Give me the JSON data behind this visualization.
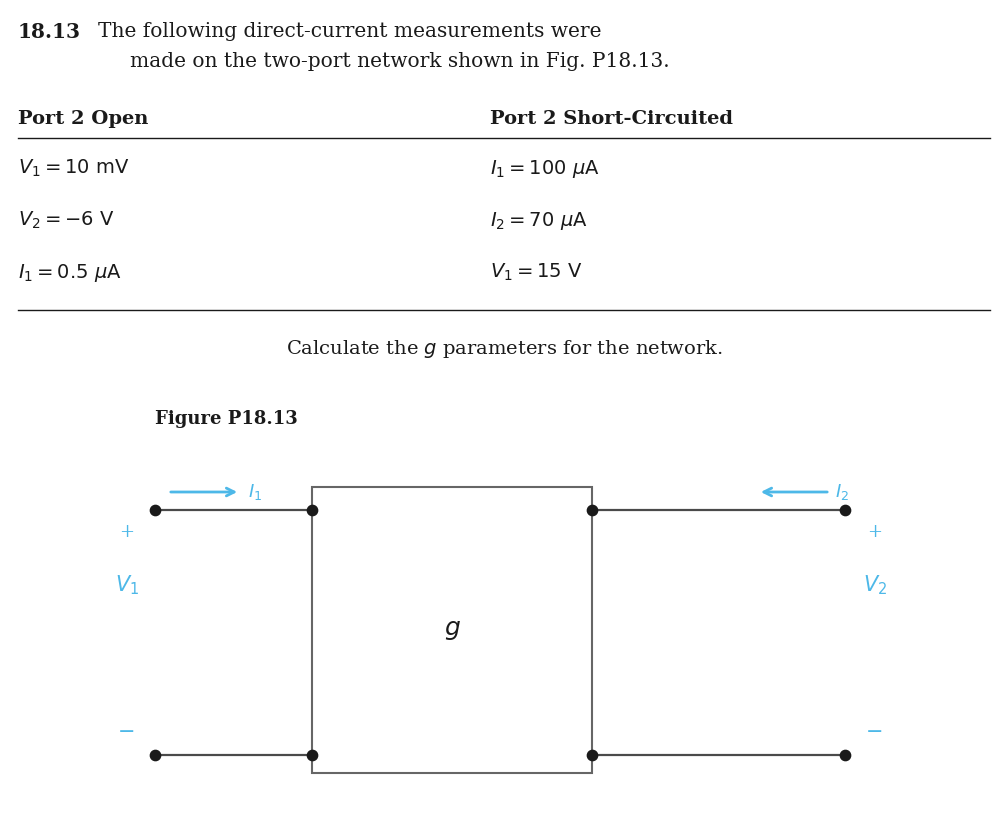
{
  "title_bold": "18.13",
  "title_line1": "The following direct-current measurements were",
  "title_line2": "made on the two-port network shown in Fig. P18.13.",
  "col1_header": "Port 2 Open",
  "col2_header": "Port 2 Short-Circuited",
  "col1_rows": [
    "$V_1 = 10\\ \\mathrm{mV}$",
    "$V_2 = {-6}\\ \\mathrm{V}$",
    "$I_1 = 0.5\\ \\mu\\mathrm{A}$"
  ],
  "col2_rows": [
    "$I_1 = 100\\ \\mu\\mathrm{A}$",
    "$I_2 = 70\\ \\mu\\mathrm{A}$",
    "$V_1 = 15\\ \\mathrm{V}$"
  ],
  "calc_text": "Calculate the $g$ parameters for the network.",
  "fig_label": "Figure P18.13",
  "arrow_color": "#4db8e8",
  "line_color": "#4a4a4a",
  "dot_color": "#1a1a1a",
  "box_edge_color": "#666666",
  "text_color": "#1a1a1a",
  "bg_color": "#ffffff"
}
